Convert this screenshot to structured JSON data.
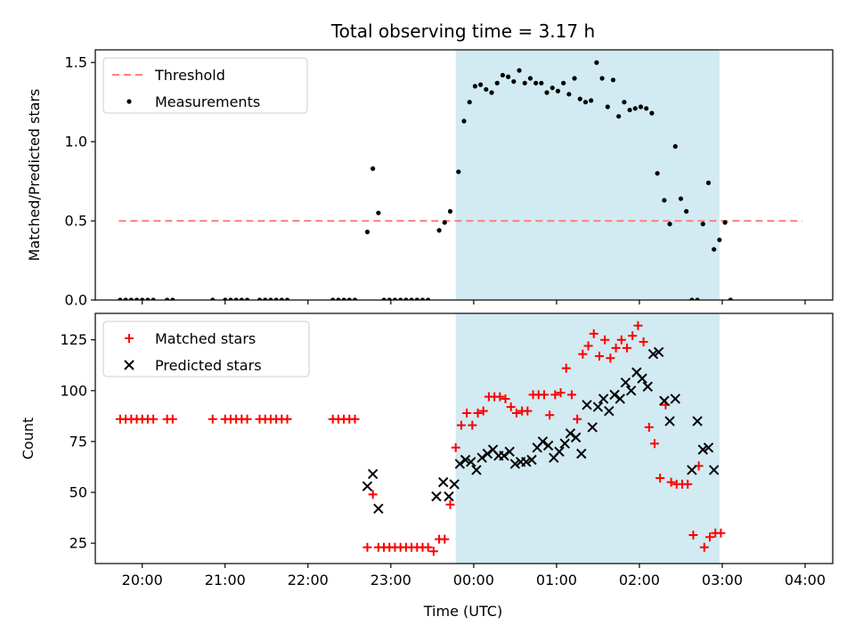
{
  "figure": {
    "title": "Total observing time = 3.17 h",
    "xlabel": "Time (UTC)"
  },
  "colors": {
    "shade": "#add8e6",
    "threshold": "#ff7f7f",
    "measurements": "#000000",
    "matched": "#ff0000",
    "predicted": "#000000"
  },
  "chart_data": [
    {
      "type": "scatter",
      "ylabel": "Matched/Predicted stars",
      "ylim": [
        0,
        1.58
      ],
      "yticks": [
        0,
        0.5,
        1.0,
        1.5
      ],
      "ytick_labels": [
        "0.0",
        "0.5",
        "1.0",
        "1.5"
      ],
      "xlim": [
        "19:26",
        "04:20"
      ],
      "shaded_span": [
        "23:47",
        "02:58"
      ],
      "legend": {
        "placement": "upper-left",
        "entries": [
          "Threshold",
          "Measurements"
        ]
      },
      "threshold": {
        "name": "Threshold",
        "style": "dashed",
        "x": [
          "19:43",
          "03:58"
        ],
        "y": 0.5
      },
      "series": [
        {
          "name": "Measurements",
          "points": [
            [
              "19:44",
              0
            ],
            [
              "19:48",
              0
            ],
            [
              "19:52",
              0
            ],
            [
              "19:56",
              0
            ],
            [
              "20:00",
              0
            ],
            [
              "20:04",
              0
            ],
            [
              "20:08",
              0
            ],
            [
              "20:18",
              0
            ],
            [
              "20:22",
              0
            ],
            [
              "20:51",
              0
            ],
            [
              "21:00",
              0
            ],
            [
              "21:04",
              0
            ],
            [
              "21:08",
              0
            ],
            [
              "21:12",
              0
            ],
            [
              "21:16",
              0
            ],
            [
              "21:25",
              0
            ],
            [
              "21:29",
              0
            ],
            [
              "21:33",
              0
            ],
            [
              "21:37",
              0
            ],
            [
              "21:41",
              0
            ],
            [
              "21:45",
              0
            ],
            [
              "22:18",
              0
            ],
            [
              "22:22",
              0
            ],
            [
              "22:26",
              0
            ],
            [
              "22:30",
              0
            ],
            [
              "22:34",
              0
            ],
            [
              "22:43",
              0.43
            ],
            [
              "22:47",
              0.83
            ],
            [
              "22:51",
              0.55
            ],
            [
              "22:55",
              0
            ],
            [
              "22:59",
              0
            ],
            [
              "23:03",
              0
            ],
            [
              "23:07",
              0
            ],
            [
              "23:11",
              0
            ],
            [
              "23:15",
              0
            ],
            [
              "23:19",
              0
            ],
            [
              "23:23",
              0
            ],
            [
              "23:27",
              0
            ],
            [
              "23:35",
              0.44
            ],
            [
              "23:39",
              0.49
            ],
            [
              "23:43",
              0.56
            ],
            [
              "23:49",
              0.81
            ],
            [
              "23:53",
              1.13
            ],
            [
              "23:57",
              1.25
            ],
            [
              "00:01",
              1.35
            ],
            [
              "00:05",
              1.36
            ],
            [
              "00:09",
              1.33
            ],
            [
              "00:13",
              1.31
            ],
            [
              "00:17",
              1.37
            ],
            [
              "00:21",
              1.42
            ],
            [
              "00:25",
              1.41
            ],
            [
              "00:29",
              1.38
            ],
            [
              "00:33",
              1.45
            ],
            [
              "00:37",
              1.37
            ],
            [
              "00:41",
              1.4
            ],
            [
              "00:45",
              1.37
            ],
            [
              "00:49",
              1.37
            ],
            [
              "00:53",
              1.31
            ],
            [
              "00:57",
              1.34
            ],
            [
              "01:01",
              1.32
            ],
            [
              "01:05",
              1.37
            ],
            [
              "01:09",
              1.3
            ],
            [
              "01:13",
              1.4
            ],
            [
              "01:17",
              1.27
            ],
            [
              "01:21",
              1.25
            ],
            [
              "01:25",
              1.26
            ],
            [
              "01:29",
              1.5
            ],
            [
              "01:33",
              1.4
            ],
            [
              "01:37",
              1.22
            ],
            [
              "01:41",
              1.39
            ],
            [
              "01:45",
              1.16
            ],
            [
              "01:49",
              1.25
            ],
            [
              "01:53",
              1.2
            ],
            [
              "01:57",
              1.21
            ],
            [
              "02:01",
              1.22
            ],
            [
              "02:05",
              1.21
            ],
            [
              "02:09",
              1.18
            ],
            [
              "02:13",
              0.8
            ],
            [
              "02:18",
              0.63
            ],
            [
              "02:22",
              0.48
            ],
            [
              "02:26",
              0.97
            ],
            [
              "02:30",
              0.64
            ],
            [
              "02:34",
              0.56
            ],
            [
              "02:38",
              0
            ],
            [
              "02:42",
              0
            ],
            [
              "02:46",
              0.48
            ],
            [
              "02:50",
              0.74
            ],
            [
              "02:54",
              0.32
            ],
            [
              "02:58",
              0.38
            ],
            [
              "03:02",
              0.49
            ],
            [
              "03:06",
              0
            ]
          ]
        }
      ]
    },
    {
      "type": "scatter",
      "ylabel": "Count",
      "ylim": [
        15,
        138
      ],
      "yticks": [
        25,
        50,
        75,
        100,
        125
      ],
      "ytick_labels": [
        "25",
        "50",
        "75",
        "100",
        "125"
      ],
      "xlim": [
        "19:26",
        "04:20"
      ],
      "xticks": [
        "20:00",
        "21:00",
        "22:00",
        "23:00",
        "00:00",
        "01:00",
        "02:00",
        "03:00",
        "04:00"
      ],
      "shaded_span": [
        "23:47",
        "02:58"
      ],
      "legend": {
        "placement": "upper-left",
        "entries": [
          "Matched stars",
          "Predicted stars"
        ]
      },
      "series": [
        {
          "name": "Matched stars",
          "marker": "+",
          "points": [
            [
              "19:44",
              86
            ],
            [
              "19:48",
              86
            ],
            [
              "19:52",
              86
            ],
            [
              "19:56",
              86
            ],
            [
              "20:00",
              86
            ],
            [
              "20:04",
              86
            ],
            [
              "20:08",
              86
            ],
            [
              "20:18",
              86
            ],
            [
              "20:22",
              86
            ],
            [
              "20:51",
              86
            ],
            [
              "21:00",
              86
            ],
            [
              "21:04",
              86
            ],
            [
              "21:08",
              86
            ],
            [
              "21:12",
              86
            ],
            [
              "21:16",
              86
            ],
            [
              "21:25",
              86
            ],
            [
              "21:29",
              86
            ],
            [
              "21:33",
              86
            ],
            [
              "21:37",
              86
            ],
            [
              "21:41",
              86
            ],
            [
              "21:45",
              86
            ],
            [
              "22:18",
              86
            ],
            [
              "22:22",
              86
            ],
            [
              "22:26",
              86
            ],
            [
              "22:30",
              86
            ],
            [
              "22:34",
              86
            ],
            [
              "22:43",
              23
            ],
            [
              "22:47",
              49
            ],
            [
              "22:51",
              23
            ],
            [
              "22:55",
              23
            ],
            [
              "22:59",
              23
            ],
            [
              "23:03",
              23
            ],
            [
              "23:07",
              23
            ],
            [
              "23:11",
              23
            ],
            [
              "23:15",
              23
            ],
            [
              "23:19",
              23
            ],
            [
              "23:23",
              23
            ],
            [
              "23:27",
              23
            ],
            [
              "23:31",
              21
            ],
            [
              "23:35",
              27
            ],
            [
              "23:39",
              27
            ],
            [
              "23:43",
              44
            ],
            [
              "23:47",
              72
            ],
            [
              "23:51",
              83
            ],
            [
              "23:55",
              89
            ],
            [
              "23:59",
              83
            ],
            [
              "00:03",
              89
            ],
            [
              "00:07",
              90
            ],
            [
              "00:11",
              97
            ],
            [
              "00:15",
              97
            ],
            [
              "00:19",
              97
            ],
            [
              "00:23",
              96
            ],
            [
              "00:27",
              92
            ],
            [
              "00:31",
              89
            ],
            [
              "00:35",
              90
            ],
            [
              "00:39",
              90
            ],
            [
              "00:43",
              98
            ],
            [
              "00:47",
              98
            ],
            [
              "00:51",
              98
            ],
            [
              "00:55",
              88
            ],
            [
              "00:59",
              98
            ],
            [
              "01:03",
              99
            ],
            [
              "01:07",
              111
            ],
            [
              "01:11",
              98
            ],
            [
              "01:15",
              86
            ],
            [
              "01:19",
              118
            ],
            [
              "01:23",
              122
            ],
            [
              "01:27",
              128
            ],
            [
              "01:31",
              117
            ],
            [
              "01:35",
              125
            ],
            [
              "01:39",
              116
            ],
            [
              "01:43",
              121
            ],
            [
              "01:47",
              125
            ],
            [
              "01:51",
              121
            ],
            [
              "01:55",
              127
            ],
            [
              "01:59",
              132
            ],
            [
              "02:03",
              124
            ],
            [
              "02:07",
              82
            ],
            [
              "02:11",
              74
            ],
            [
              "02:15",
              57
            ],
            [
              "02:19",
              93
            ],
            [
              "02:23",
              55
            ],
            [
              "02:27",
              54
            ],
            [
              "02:31",
              54
            ],
            [
              "02:35",
              54
            ],
            [
              "02:39",
              29
            ],
            [
              "02:43",
              63
            ],
            [
              "02:47",
              23
            ],
            [
              "02:51",
              28
            ],
            [
              "02:55",
              30
            ],
            [
              "02:59",
              30
            ]
          ]
        },
        {
          "name": "Predicted stars",
          "marker": "x",
          "points": [
            [
              "22:43",
              53
            ],
            [
              "22:47",
              59
            ],
            [
              "22:51",
              42
            ],
            [
              "23:33",
              48
            ],
            [
              "23:38",
              55
            ],
            [
              "23:42",
              48
            ],
            [
              "23:46",
              54
            ],
            [
              "23:50",
              64
            ],
            [
              "23:54",
              66
            ],
            [
              "23:58",
              65
            ],
            [
              "00:02",
              61
            ],
            [
              "00:06",
              67
            ],
            [
              "00:10",
              69
            ],
            [
              "00:14",
              71
            ],
            [
              "00:18",
              68
            ],
            [
              "00:22",
              68
            ],
            [
              "00:26",
              70
            ],
            [
              "00:30",
              64
            ],
            [
              "00:34",
              65
            ],
            [
              "00:38",
              65
            ],
            [
              "00:42",
              66
            ],
            [
              "00:46",
              72
            ],
            [
              "00:50",
              75
            ],
            [
              "00:54",
              73
            ],
            [
              "00:58",
              67
            ],
            [
              "01:02",
              70
            ],
            [
              "01:06",
              74
            ],
            [
              "01:10",
              79
            ],
            [
              "01:14",
              77
            ],
            [
              "01:18",
              69
            ],
            [
              "01:22",
              93
            ],
            [
              "01:26",
              82
            ],
            [
              "01:30",
              92
            ],
            [
              "01:34",
              96
            ],
            [
              "01:38",
              90
            ],
            [
              "01:42",
              98
            ],
            [
              "01:46",
              96
            ],
            [
              "01:50",
              104
            ],
            [
              "01:54",
              100
            ],
            [
              "01:58",
              109
            ],
            [
              "02:02",
              106
            ],
            [
              "02:06",
              102
            ],
            [
              "02:10",
              118
            ],
            [
              "02:14",
              119
            ],
            [
              "02:18",
              95
            ],
            [
              "02:22",
              85
            ],
            [
              "02:26",
              96
            ],
            [
              "02:38",
              61
            ],
            [
              "02:42",
              85
            ],
            [
              "02:46",
              71
            ],
            [
              "02:50",
              72
            ],
            [
              "02:54",
              61
            ]
          ]
        }
      ]
    }
  ]
}
